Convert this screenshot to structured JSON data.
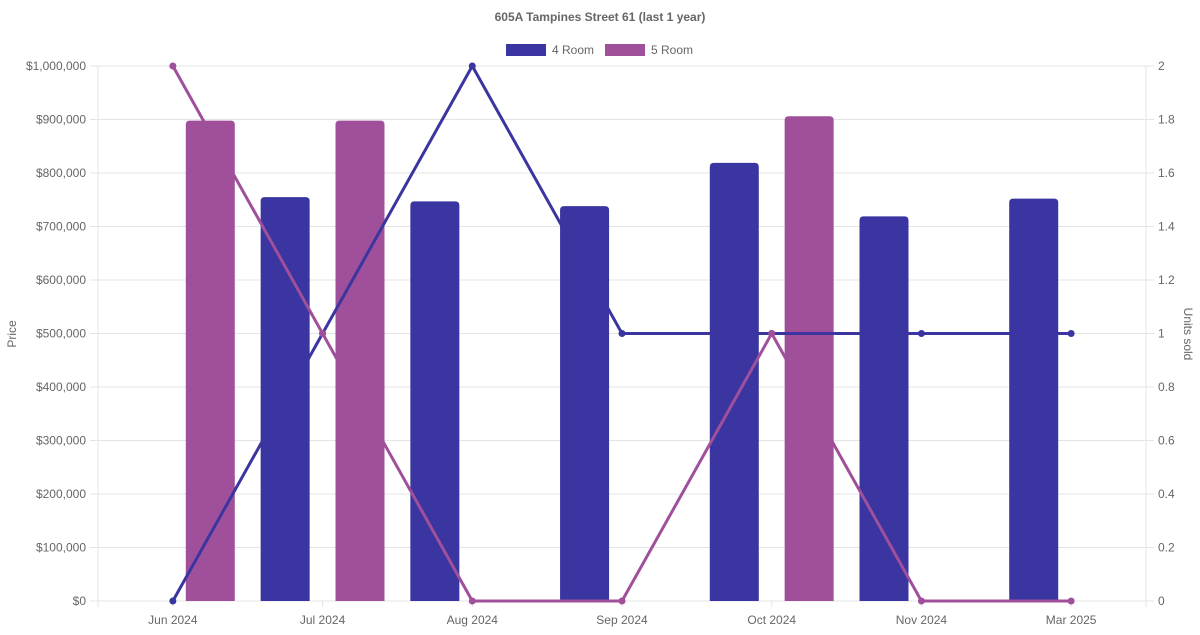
{
  "colors": {
    "four_room": "#3a35a0",
    "five_room": "#a0509a",
    "grid": "#e4e4e4",
    "text": "#666666"
  },
  "chart_data": {
    "type": "bar",
    "title": "605A Tampines Street 61 (last 1 year)",
    "legend_position": "top-center",
    "grid": true,
    "categories": [
      "Jun 2024",
      "Jul 2024",
      "Aug 2024",
      "Sep 2024",
      "Oct 2024",
      "Nov 2024",
      "Mar 2025"
    ],
    "y_left": {
      "label": "Price",
      "lim": [
        0,
        1000000
      ],
      "ticks": [
        {
          "value": 0,
          "label": "$0"
        },
        {
          "value": 100000,
          "label": "$100,000"
        },
        {
          "value": 200000,
          "label": "$200,000"
        },
        {
          "value": 300000,
          "label": "$300,000"
        },
        {
          "value": 400000,
          "label": "$400,000"
        },
        {
          "value": 500000,
          "label": "$500,000"
        },
        {
          "value": 600000,
          "label": "$600,000"
        },
        {
          "value": 700000,
          "label": "$700,000"
        },
        {
          "value": 800000,
          "label": "$800,000"
        },
        {
          "value": 900000,
          "label": "$900,000"
        },
        {
          "value": 1000000,
          "label": "$1,000,000"
        }
      ]
    },
    "y_right": {
      "label": "Units sold",
      "lim": [
        0,
        2
      ],
      "ticks": [
        {
          "value": 0,
          "label": "0"
        },
        {
          "value": 0.2,
          "label": "0.2"
        },
        {
          "value": 0.4,
          "label": "0.4"
        },
        {
          "value": 0.6,
          "label": "0.6"
        },
        {
          "value": 0.8,
          "label": "0.8"
        },
        {
          "value": 1,
          "label": "1"
        },
        {
          "value": 1.2,
          "label": "1.2"
        },
        {
          "value": 1.4,
          "label": "1.4"
        },
        {
          "value": 1.6,
          "label": "1.6"
        },
        {
          "value": 1.8,
          "label": "1.8"
        },
        {
          "value": 2,
          "label": "2"
        }
      ]
    },
    "series": [
      {
        "name": "4 Room",
        "color_key": "four_room",
        "price": [
          null,
          755000,
          747000,
          738000,
          819000,
          719000,
          752000
        ],
        "units_sold": [
          0,
          1,
          2,
          1,
          1,
          1,
          1
        ]
      },
      {
        "name": "5 Room",
        "color_key": "five_room",
        "price": [
          898000,
          898000,
          null,
          null,
          906000,
          null,
          null
        ],
        "units_sold": [
          2,
          1,
          0,
          0,
          1,
          0,
          0
        ]
      }
    ]
  }
}
